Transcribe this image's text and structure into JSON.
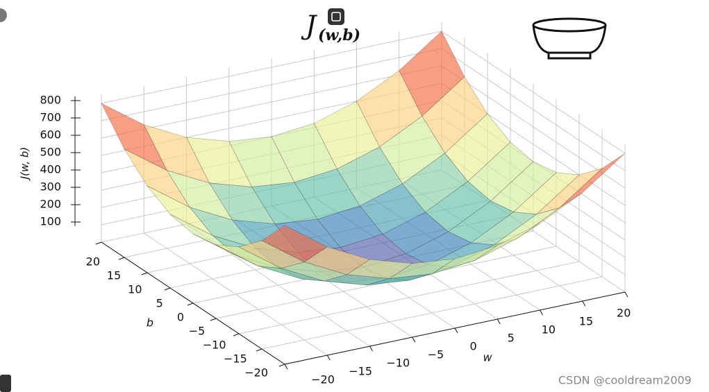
{
  "chart_data": {
    "type": "surface",
    "title": "J",
    "title_subscript": "(w,b)",
    "xlabel": "w",
    "ylabel": "b",
    "zlabel": "J(w, b)",
    "x": [
      -20,
      -15,
      -10,
      -5,
      0,
      5,
      10,
      15,
      20
    ],
    "y": [
      -20,
      -15,
      -10,
      -5,
      0,
      5,
      10,
      15,
      20
    ],
    "z": [
      [
        800,
        625,
        500,
        425,
        400,
        425,
        500,
        625,
        800
      ],
      [
        625,
        450,
        325,
        250,
        225,
        250,
        325,
        450,
        625
      ],
      [
        500,
        325,
        200,
        125,
        100,
        125,
        200,
        325,
        500
      ],
      [
        425,
        250,
        125,
        50,
        25,
        50,
        125,
        250,
        425
      ],
      [
        400,
        225,
        100,
        25,
        0,
        25,
        100,
        225,
        400
      ],
      [
        425,
        250,
        125,
        50,
        25,
        50,
        125,
        250,
        425
      ],
      [
        500,
        325,
        200,
        125,
        100,
        125,
        200,
        325,
        500
      ],
      [
        625,
        450,
        325,
        250,
        225,
        250,
        325,
        450,
        625
      ],
      [
        800,
        625,
        500,
        425,
        400,
        425,
        500,
        625,
        800
      ]
    ],
    "xlim": [
      -20,
      20
    ],
    "ylim": [
      -20,
      20
    ],
    "zlim": [
      0,
      850
    ],
    "xticks": [
      {
        "value": -20,
        "label": "−20"
      },
      {
        "value": -15,
        "label": "−15"
      },
      {
        "value": -10,
        "label": "−10"
      },
      {
        "value": -5,
        "label": "−5"
      },
      0,
      5,
      10,
      15,
      20
    ],
    "yticks": [
      {
        "value": -20,
        "label": "−20"
      },
      {
        "value": -15,
        "label": "−15"
      },
      {
        "value": -10,
        "label": "−10"
      },
      {
        "value": -5,
        "label": "−5"
      },
      0,
      5,
      10,
      15,
      20
    ],
    "zticks": [
      100,
      200,
      300,
      400,
      500,
      600,
      700,
      800
    ],
    "grid": true,
    "colors": [
      "#5e4fa2",
      "#3288bd",
      "#66c2a5",
      "#abdda4",
      "#e6f598",
      "#fee08b",
      "#fdae61",
      "#f46d43",
      "#d53e4f",
      "#9e0142"
    ],
    "opacity": 0.65,
    "watermark": "CSDN @cooldream2009"
  }
}
